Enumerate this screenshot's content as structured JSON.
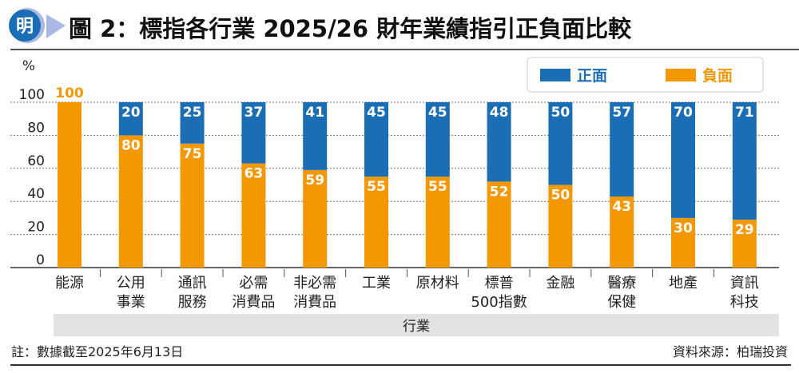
{
  "header": {
    "logo_text": "明",
    "title": "圖 2：標指各行業 2025/26 財年業績指引正負面比較"
  },
  "colors": {
    "positive": "#1b6eb4",
    "negative": "#f39800",
    "logo": "#1b6eb4",
    "axis_band": "#e3e3e3"
  },
  "chart_data": {
    "type": "bar",
    "stacked": true,
    "ylabel": "%",
    "xlabel": "行業",
    "ylim": [
      0,
      100
    ],
    "yticks": [
      "0",
      "20",
      "40",
      "60",
      "80",
      "100"
    ],
    "grid": true,
    "legend_position": "top-right",
    "categories": [
      [
        "能源"
      ],
      [
        "公用",
        "事業"
      ],
      [
        "通訊",
        "服務"
      ],
      [
        "必需",
        "消費品"
      ],
      [
        "非必需",
        "消費品"
      ],
      [
        "工業"
      ],
      [
        "原材料"
      ],
      [
        "標普",
        "500指數"
      ],
      [
        "金融"
      ],
      [
        "醫療",
        "保健"
      ],
      [
        "地產"
      ],
      [
        "資訊",
        "科技"
      ]
    ],
    "series": [
      {
        "name": "負面",
        "values": [
          100,
          80,
          75,
          63,
          59,
          55,
          55,
          52,
          50,
          43,
          30,
          29
        ]
      },
      {
        "name": "正面",
        "values": [
          0,
          20,
          25,
          37,
          41,
          45,
          45,
          48,
          50,
          57,
          70,
          71
        ]
      }
    ]
  },
  "footer": {
    "note": "註：數據截至2025年6月13日",
    "source": "資料來源：柏瑞投資"
  }
}
